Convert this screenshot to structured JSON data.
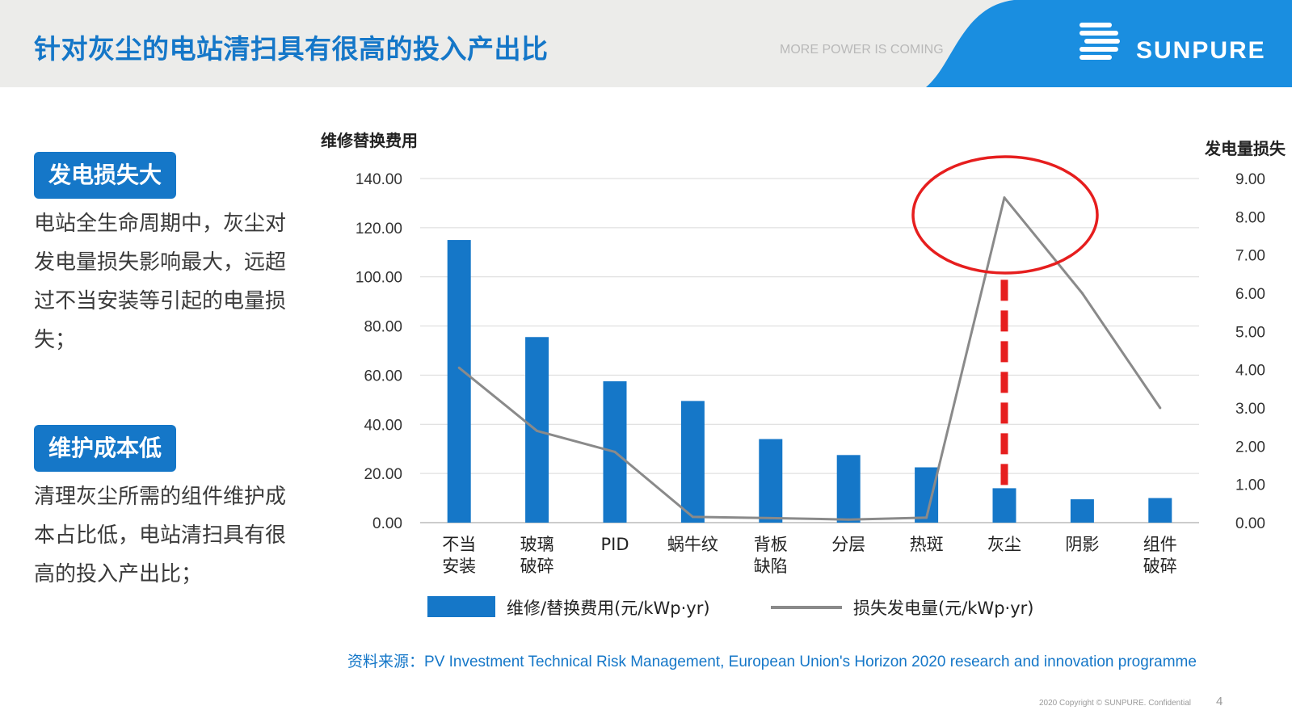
{
  "header": {
    "title": "针对灰尘的电站清扫具有很高的投入产出比",
    "tagline": "MORE POWER IS COMING",
    "logo_text": "SUNPURE",
    "colors": {
      "brand": "#1577c8",
      "logo_bg": "#1a8ee0",
      "header_bg": "#ececea"
    }
  },
  "left": {
    "section1": {
      "badge": "发电损失大",
      "text": "电站全生命周期中，灰尘对发电量损失影响最大，远超过不当安装等引起的电量损失；"
    },
    "section2": {
      "badge": "维护成本低",
      "text": "清理灰尘所需的组件维护成本占比低，电站清扫具有很高的投入产出比；"
    }
  },
  "chart_data": {
    "type": "bar",
    "ylabel": "维修替换费用",
    "y2label": "发电量损失",
    "ylim": [
      0,
      140
    ],
    "y2lim": [
      0,
      9
    ],
    "yticks": [
      "0.00",
      "20.00",
      "40.00",
      "60.00",
      "80.00",
      "100.00",
      "120.00",
      "140.00"
    ],
    "y2ticks": [
      "0.00",
      "1.00",
      "2.00",
      "3.00",
      "4.00",
      "5.00",
      "6.00",
      "7.00",
      "8.00",
      "9.00"
    ],
    "categories": [
      [
        "不当",
        "安装"
      ],
      [
        "玻璃",
        "破碎"
      ],
      [
        "PID"
      ],
      [
        "蜗牛纹"
      ],
      [
        "背板",
        "缺陷"
      ],
      [
        "分层"
      ],
      [
        "热斑"
      ],
      [
        "灰尘"
      ],
      [
        "阴影"
      ],
      [
        "组件",
        "破碎"
      ]
    ],
    "series": [
      {
        "name": "维修/替换费用(元/kWp·yr)",
        "type": "bar",
        "axis": "left",
        "color": "#1577c8",
        "values": [
          115,
          75.5,
          57.5,
          49.5,
          34,
          27.5,
          22.5,
          14,
          9.5,
          10
        ]
      },
      {
        "name": "损失发电量(元/kWp·yr)",
        "type": "line",
        "axis": "right",
        "color": "#8a8a8a",
        "values": [
          4.05,
          2.4,
          1.85,
          0.15,
          0.12,
          0.08,
          0.13,
          8.5,
          6.0,
          3.0
        ]
      }
    ],
    "highlight": {
      "category": "灰尘",
      "color": "#e61e1e"
    },
    "grid": true,
    "legend_position": "bottom"
  },
  "footer": {
    "source_label": "资料来源：",
    "source_text": "PV Investment Technical Risk Management, European Union's Horizon 2020 research and innovation programme",
    "copyright": "2020 Copyright © SUNPURE. Confidential",
    "page_number": "4"
  }
}
